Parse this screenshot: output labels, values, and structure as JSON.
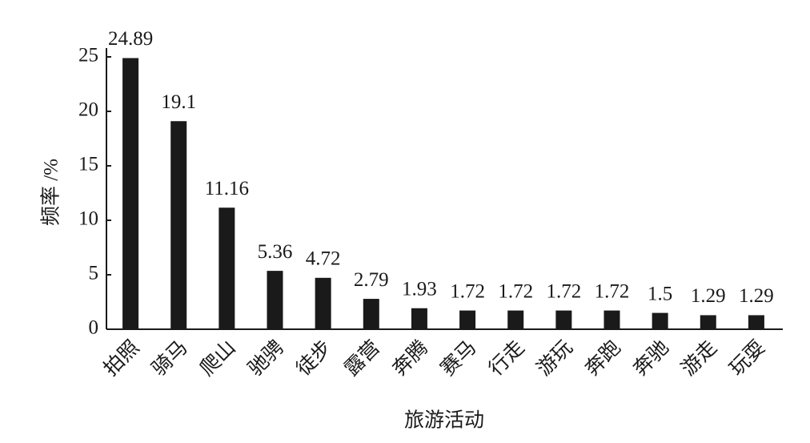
{
  "chart_data": {
    "type": "bar",
    "x_label": "旅游活动",
    "y_label": "频率 /%",
    "categories": [
      "拍照",
      "骑马",
      "爬山",
      "驰骋",
      "徒步",
      "露营",
      "奔腾",
      "赛马",
      "行走",
      "游玩",
      "奔跑",
      "奔驰",
      "游走",
      "玩耍"
    ],
    "values": [
      24.89,
      19.1,
      11.16,
      5.36,
      4.72,
      2.79,
      1.93,
      1.72,
      1.72,
      1.72,
      1.72,
      1.5,
      1.29,
      1.29
    ],
    "color": "#1a1a1a",
    "ylim": [
      0,
      25
    ],
    "yticks": [
      0,
      5,
      10,
      15,
      20,
      25
    ],
    "grid": false
  }
}
